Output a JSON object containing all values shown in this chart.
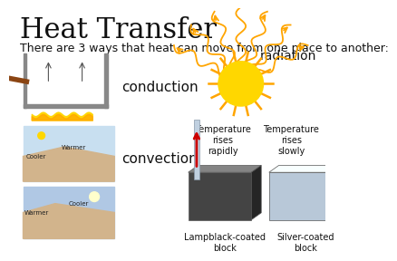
{
  "title": "Heat Transfer",
  "subtitle": "There are 3 ways that heat can move from one place to another:",
  "bg_color": "#ffffff",
  "title_fontsize": 22,
  "subtitle_fontsize": 9,
  "label_conduction": "conduction",
  "label_convection": "convection",
  "label_radiation": "radiation",
  "label_lampblack": "Lampblack-coated\nblock",
  "label_silver": "Silver-coated\nblock",
  "label_temp_rapid": "Temperature\nrises\nrapidly",
  "label_temp_slow": "Temperature\nrises\nslowly",
  "sun_color": "#FFD700",
  "ray_color": "#FFA500",
  "arrow_color": "#CC0000",
  "block_dark": "#444444",
  "block_light": "#b8c8d8",
  "thermometer_color": "#c0d0e0",
  "label_fontsize": 10,
  "small_fontsize": 7
}
